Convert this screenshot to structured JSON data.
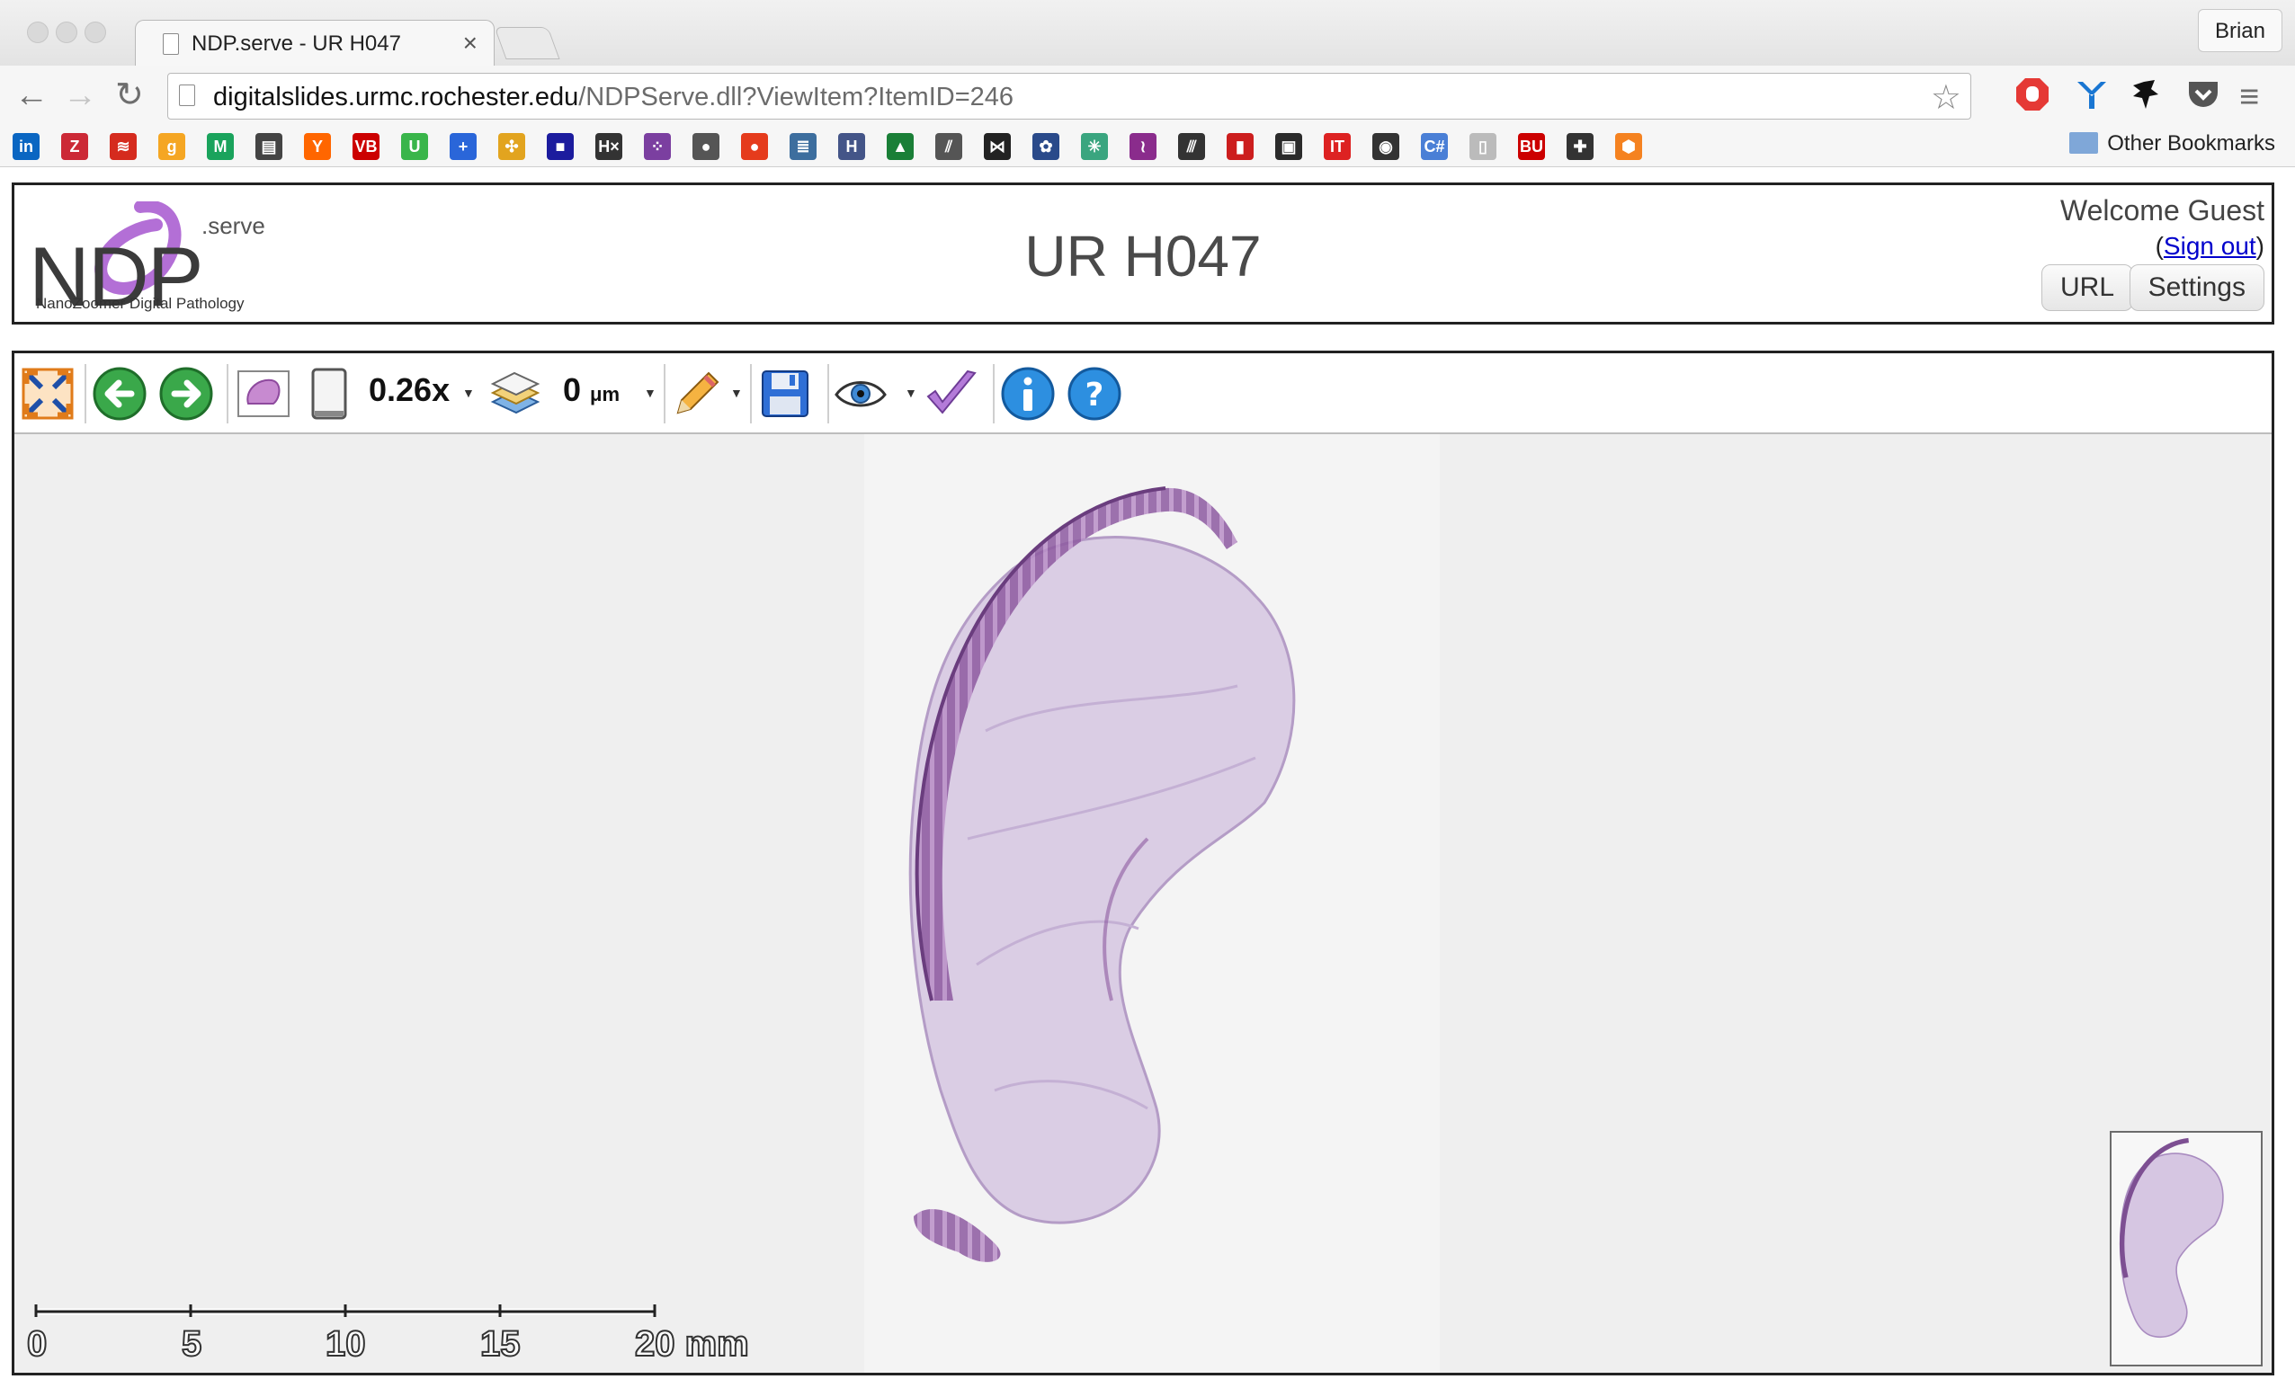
{
  "browser": {
    "tab_title": "NDP.serve - UR H047",
    "tab_close": "×",
    "profile_name": "Brian",
    "url_host": "digitalslides.urmc.rochester.edu",
    "url_path": "/NDPServe.dll?ViewItem?ItemID=246",
    "nav": {
      "back": "←",
      "forward": "→",
      "reload": "↻",
      "star": "☆",
      "menu": "≡"
    },
    "bookmarks_other": "Other Bookmarks",
    "bookmark_icons": [
      {
        "name": "linkedin-icon",
        "glyph": "in",
        "color": "#0a66c2"
      },
      {
        "name": "zotero-icon",
        "glyph": "Z",
        "color": "#cc2936"
      },
      {
        "name": "bank-icon",
        "glyph": "≋",
        "color": "#d52b1e"
      },
      {
        "name": "goodreads-icon",
        "glyph": "g",
        "color": "#f5a623"
      },
      {
        "name": "medium-icon",
        "glyph": "M",
        "color": "#1aa35c"
      },
      {
        "name": "news-icon",
        "glyph": "▤",
        "color": "#444444"
      },
      {
        "name": "ycombinator-icon",
        "glyph": "Y",
        "color": "#ff6600"
      },
      {
        "name": "vb-icon",
        "glyph": "VB",
        "color": "#cc0000"
      },
      {
        "name": "u-icon",
        "glyph": "U",
        "color": "#39b54a"
      },
      {
        "name": "plus-icon",
        "glyph": "+",
        "color": "#2a66d9"
      },
      {
        "name": "pinwheel-icon",
        "glyph": "✣",
        "color": "#e2a41f"
      },
      {
        "name": "grid-icon",
        "glyph": "■",
        "color": "#1c1c9e"
      },
      {
        "name": "hx-icon",
        "glyph": "H×",
        "color": "#333333"
      },
      {
        "name": "dots-icon",
        "glyph": "⁘",
        "color": "#7b3fa0"
      },
      {
        "name": "app-press-icon",
        "glyph": "●",
        "color": "#555555"
      },
      {
        "name": "tomato-icon",
        "glyph": "●",
        "color": "#e53b1c"
      },
      {
        "name": "database-icon",
        "glyph": "≣",
        "color": "#3d6e9e"
      },
      {
        "name": "h-icon",
        "glyph": "H",
        "color": "#445588"
      },
      {
        "name": "chart-icon",
        "glyph": "▲",
        "color": "#1a7f37"
      },
      {
        "name": "slashes-icon",
        "glyph": "⫽",
        "color": "#555555"
      },
      {
        "name": "bowtie-icon",
        "glyph": "⋈",
        "color": "#222222"
      },
      {
        "name": "flower-icon",
        "glyph": "✿",
        "color": "#2a4a8a"
      },
      {
        "name": "network-icon",
        "glyph": "✳",
        "color": "#3aa57f"
      },
      {
        "name": "feather-icon",
        "glyph": "≀",
        "color": "#8a2c8c"
      },
      {
        "name": "lines-icon",
        "glyph": "⫻",
        "color": "#333333"
      },
      {
        "name": "bars-icon",
        "glyph": "▮",
        "color": "#cc1e1e"
      },
      {
        "name": "photo-icon",
        "glyph": "▣",
        "color": "#2b2b2b"
      },
      {
        "name": "it-icon",
        "glyph": "IT",
        "color": "#dd2222"
      },
      {
        "name": "record-icon",
        "glyph": "◉",
        "color": "#333333"
      },
      {
        "name": "csharp-icon",
        "glyph": "C#",
        "color": "#4a7fd6"
      },
      {
        "name": "blank-page-icon",
        "glyph": "▯",
        "color": "#bbbbbb"
      },
      {
        "name": "bu-icon",
        "glyph": "BU",
        "color": "#cc0000"
      },
      {
        "name": "puzzle-icon",
        "glyph": "✚",
        "color": "#333333"
      },
      {
        "name": "hexagon-icon",
        "glyph": "⬢",
        "color": "#f58220"
      }
    ]
  },
  "header": {
    "logo_serve": ".serve",
    "logo_nd": "NDP",
    "logo_subtitle": "NanoZoomer Digital Pathology",
    "title": "UR H047",
    "welcome": "Welcome Guest",
    "signout_open": "(",
    "signout_link": "Sign out",
    "signout_close": ")",
    "url_button": "URL",
    "settings_button": "Settings"
  },
  "viewer": {
    "zoom": "0.26x",
    "focus_value": "0",
    "focus_unit": "μm",
    "scale_labels": [
      "0",
      "5",
      "10",
      "15",
      "20 mm"
    ]
  },
  "colors": {
    "tissue": "#c9b4d6",
    "tissue_dark": "#7a4e8c",
    "accent_green": "#3aa84a",
    "help_blue": "#1f8fd8"
  }
}
